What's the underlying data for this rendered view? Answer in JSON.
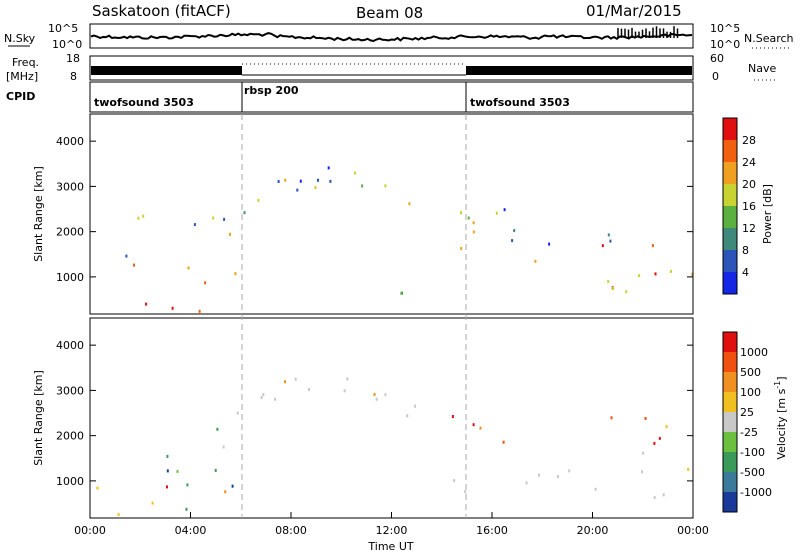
{
  "header": {
    "station": "Saskatoon (fitACF)",
    "beam": "Beam 08",
    "date": "01/Mar/2015"
  },
  "noise_panel": {
    "left_label": "N.Sky",
    "right_label": "N.Search",
    "left_ticks": [
      "10^5",
      "10^0"
    ],
    "right_ticks": [
      "10^5",
      "10^0"
    ]
  },
  "freq_panel": {
    "left_label_line1": "Freq.",
    "left_label_line2": "[MHz]",
    "right_label": "Nave",
    "left_ticks": [
      "18",
      "8"
    ],
    "right_ticks": [
      "60",
      "0"
    ]
  },
  "cpid_panel": {
    "label": "CPID",
    "segments": [
      {
        "start_hour": 0,
        "end_hour": 6,
        "label": "twofsound 3503"
      },
      {
        "start_hour": 6,
        "end_hour": 15,
        "label": "rbsp 200"
      },
      {
        "start_hour": 15,
        "end_hour": 24,
        "label": "twofsound 3503"
      }
    ]
  },
  "chart_data": [
    {
      "type": "heatmap",
      "title": "",
      "xlabel": "",
      "ylabel": "Slant Range [km]",
      "xlim": [
        0,
        24
      ],
      "ylim": [
        180,
        4600
      ],
      "yticks": [
        1000,
        2000,
        3000,
        4000
      ],
      "colorbar": {
        "label": "Power [dB]",
        "ticks": [
          "4",
          "8",
          "12",
          "16",
          "20",
          "24",
          "28"
        ],
        "colors": [
          "#1426e6",
          "#2b55b8",
          "#3d8a7a",
          "#5cb040",
          "#c8d230",
          "#f0a020",
          "#f06010",
          "#e01010"
        ]
      },
      "scatter_regions": [
        {
          "t0": 0.0,
          "t1": 5.8,
          "r0": 200,
          "r1": 1300,
          "level": "strong"
        },
        {
          "t0": 0.3,
          "t1": 5.8,
          "r0": 1300,
          "r1": 2500,
          "level": "medium"
        },
        {
          "t0": 5.8,
          "t1": 13.2,
          "r0": 1700,
          "r1": 3400,
          "level": "medium",
          "shape": "arc"
        },
        {
          "t0": 6.2,
          "t1": 12.5,
          "r0": 350,
          "r1": 700,
          "level": "weak"
        },
        {
          "t0": 14.2,
          "t1": 24.0,
          "r0": 600,
          "r1": 1700,
          "level": "strong"
        },
        {
          "t0": 14.2,
          "t1": 24.0,
          "r0": 1700,
          "r1": 2700,
          "level": "medium"
        }
      ]
    },
    {
      "type": "heatmap",
      "title": "",
      "xlabel": "Time UT",
      "ylabel": "Slant Range [km]",
      "xlim": [
        0,
        24
      ],
      "ylim": [
        180,
        4600
      ],
      "yticks": [
        1000,
        2000,
        3000,
        4000
      ],
      "xticks": [
        "00:00",
        "04:00",
        "08:00",
        "12:00",
        "16:00",
        "20:00",
        "00:00"
      ],
      "colorbar": {
        "label": "Velocity [m s^-1]",
        "ticks": [
          "1000",
          "500",
          "100",
          "25",
          "-25",
          "-100",
          "-500",
          "-1000"
        ],
        "colors": [
          "#1a3a9a",
          "#3a7a9a",
          "#3a9a5a",
          "#6cc040",
          "#c8c8c8",
          "#f0c020",
          "#f09020",
          "#f05010",
          "#e01010"
        ]
      },
      "scatter_regions": [
        {
          "t0": 0.0,
          "t1": 5.8,
          "r0": 200,
          "r1": 900,
          "level": "warm"
        },
        {
          "t0": 1.5,
          "t1": 5.8,
          "r0": 300,
          "r1": 2200,
          "level": "green"
        },
        {
          "t0": 5.8,
          "t1": 13.2,
          "r0": 1700,
          "r1": 3400,
          "level": "grey",
          "shape": "arc"
        },
        {
          "t0": 14.2,
          "t1": 24.0,
          "r0": 600,
          "r1": 1700,
          "level": "grey"
        },
        {
          "t0": 14.2,
          "t1": 24.0,
          "r0": 1700,
          "r1": 2500,
          "level": "warm"
        }
      ]
    }
  ]
}
